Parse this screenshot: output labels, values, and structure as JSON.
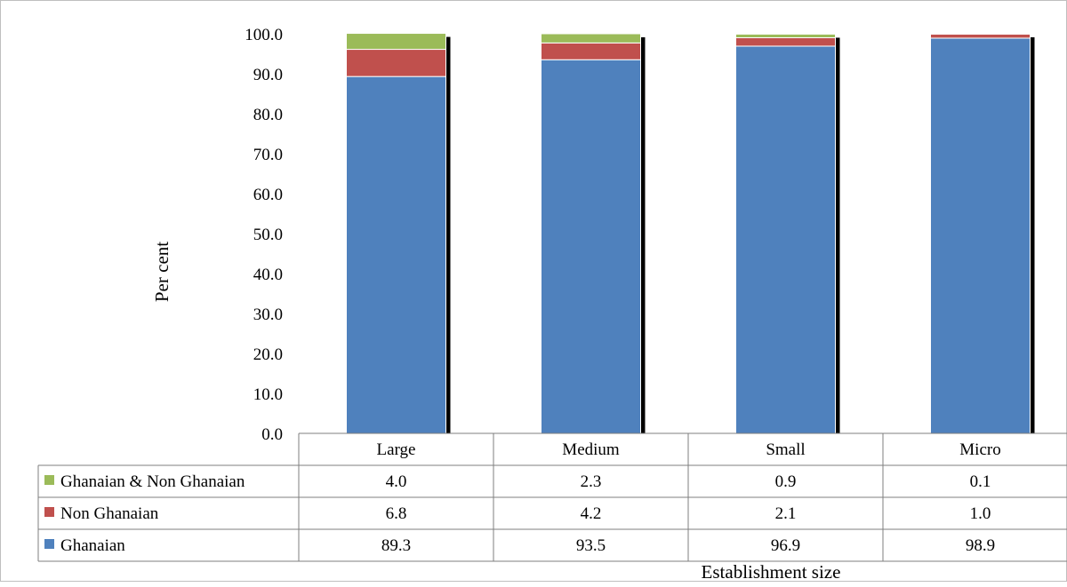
{
  "chart_data": {
    "type": "bar",
    "stacked": true,
    "categories": [
      "Large",
      "Medium",
      "Small",
      "Micro"
    ],
    "series": [
      {
        "name": "Ghanaian",
        "values": [
          89.3,
          93.5,
          96.9,
          98.9
        ],
        "color": "#4f81bd"
      },
      {
        "name": "Non Ghanaian",
        "values": [
          6.8,
          4.2,
          2.1,
          1.0
        ],
        "color": "#c0504d"
      },
      {
        "name": "Ghanaian & Non Ghanaian",
        "values": [
          4.0,
          2.3,
          0.9,
          0.1
        ],
        "color": "#9bbb59"
      }
    ],
    "table_row_order": [
      "Ghanaian & Non Ghanaian",
      "Non Ghanaian",
      "Ghanaian"
    ],
    "xlabel": "Establishment size",
    "ylabel": "Per cent",
    "ylim": [
      0,
      100
    ],
    "yticks": [
      "0.0",
      "10.0",
      "20.0",
      "30.0",
      "40.0",
      "50.0",
      "60.0",
      "70.0",
      "80.0",
      "90.0",
      "100.0"
    ],
    "grid": false,
    "legend": "data-table-left"
  }
}
